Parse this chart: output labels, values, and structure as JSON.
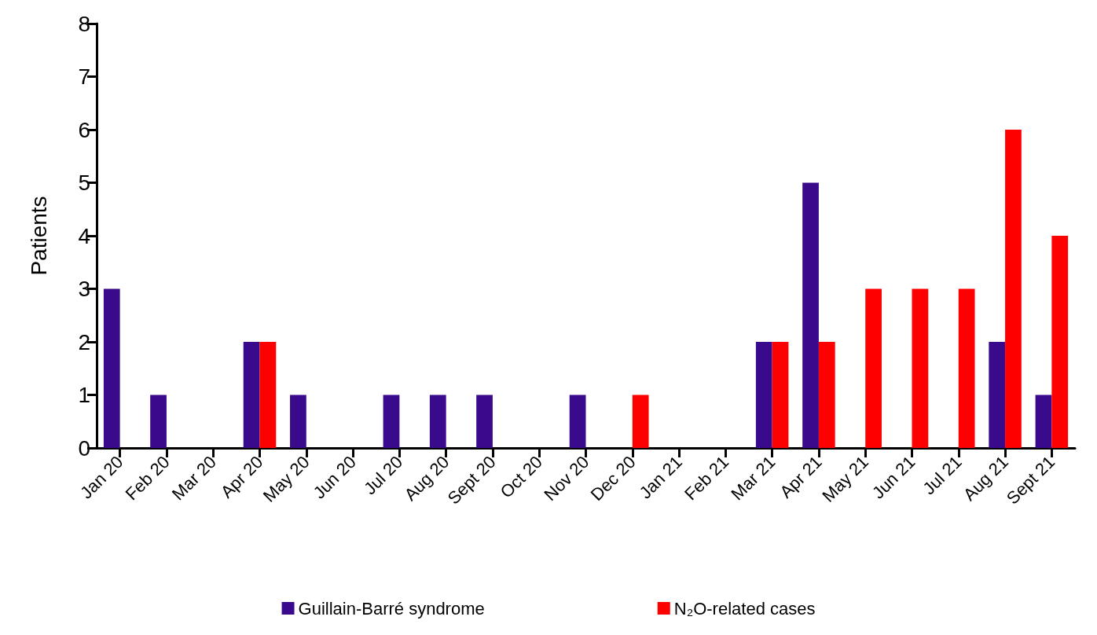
{
  "chart_data": {
    "type": "bar",
    "ylabel": "Patients",
    "categories": [
      "Jan 20",
      "Feb 20",
      "Mar 20",
      "Apr 20",
      "May 20",
      "Jun 20",
      "Jul 20",
      "Aug 20",
      "Sept 20",
      "Oct 20",
      "Nov 20",
      "Dec 20",
      "Jan 21",
      "Feb 21",
      "Mar 21",
      "Apr 21",
      "May 21",
      "Jun 21",
      "Jul 21",
      "Aug 21",
      "Sept 21"
    ],
    "series": [
      {
        "name": "Guillain-Barré syndrome",
        "color": "#3a0a8c",
        "values": [
          3,
          1,
          0,
          2,
          1,
          0,
          1,
          1,
          1,
          0,
          1,
          0,
          0,
          0,
          2,
          5,
          0,
          0,
          0,
          2,
          1
        ]
      },
      {
        "name": "N₂O-related cases",
        "color": "#ff0000",
        "values": [
          0,
          0,
          0,
          2,
          0,
          0,
          0,
          0,
          0,
          0,
          0,
          1,
          0,
          0,
          2,
          2,
          3,
          3,
          3,
          6,
          4
        ]
      }
    ],
    "ylim": [
      0,
      8
    ],
    "yticks": [
      0,
      1,
      2,
      3,
      4,
      5,
      6,
      7,
      8
    ],
    "grid": false,
    "legend": "bottom"
  }
}
